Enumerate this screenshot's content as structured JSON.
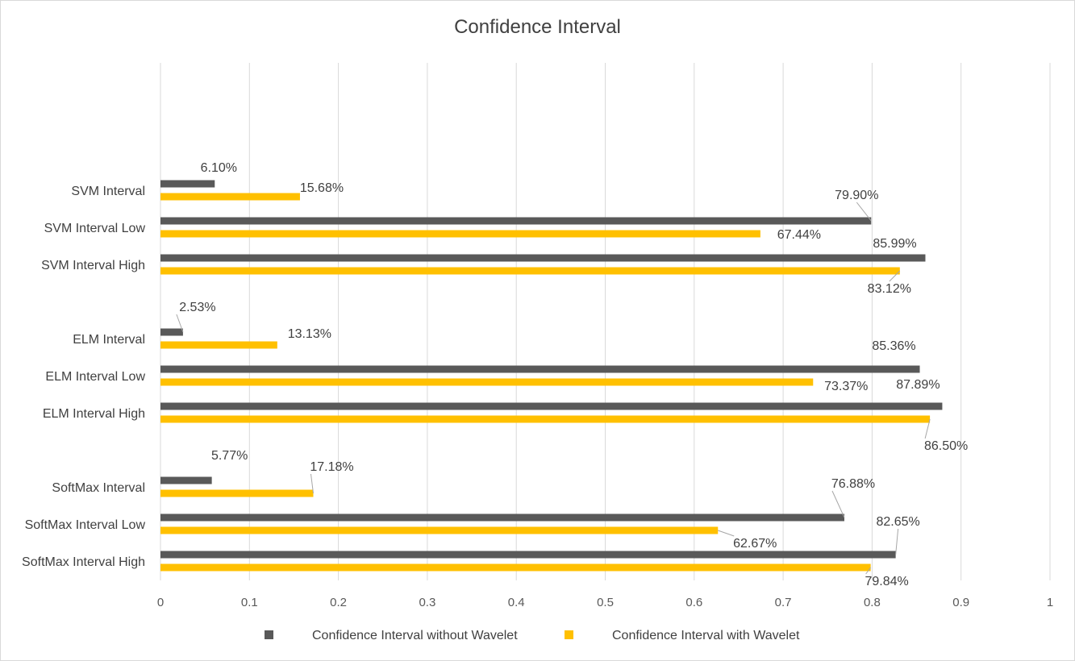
{
  "chart_data": {
    "type": "bar",
    "orientation": "horizontal",
    "title": "Confidence Interval",
    "categories": [
      "SoftMax Interval High",
      "SoftMax Interval Low",
      "SoftMax Interval",
      "ELM Interval High",
      "ELM Interval Low",
      "ELM Interval",
      "SVM Interval High",
      "SVM Interval Low",
      "SVM Interval"
    ],
    "series": [
      {
        "name": "Confidence Interval without Wavelet",
        "color": "#595959",
        "values": [
          0.8265,
          0.7688,
          0.0577,
          0.8789,
          0.8536,
          0.0253,
          0.8599,
          0.799,
          0.061
        ],
        "labels": [
          "82.65%",
          "76.88%",
          "5.77%",
          "87.89%",
          "85.36%",
          "2.53%",
          "85.99%",
          "79.90%",
          "6.10%"
        ]
      },
      {
        "name": "Confidence Interval with Wavelet",
        "color": "#ffc000",
        "values": [
          0.7984,
          0.6267,
          0.1718,
          0.865,
          0.7337,
          0.1313,
          0.8312,
          0.6744,
          0.1568
        ],
        "labels": [
          "79.84%",
          "62.67%",
          "17.18%",
          "86.50%",
          "73.37%",
          "13.13%",
          "83.12%",
          "67.44%",
          "15.68%"
        ]
      }
    ],
    "xlim": [
      0,
      1
    ],
    "xticks": [
      "0",
      "0.1",
      "0.2",
      "0.3",
      "0.4",
      "0.5",
      "0.6",
      "0.7",
      "0.8",
      "0.9",
      "1"
    ],
    "grid": true,
    "legend_position": "bottom"
  }
}
